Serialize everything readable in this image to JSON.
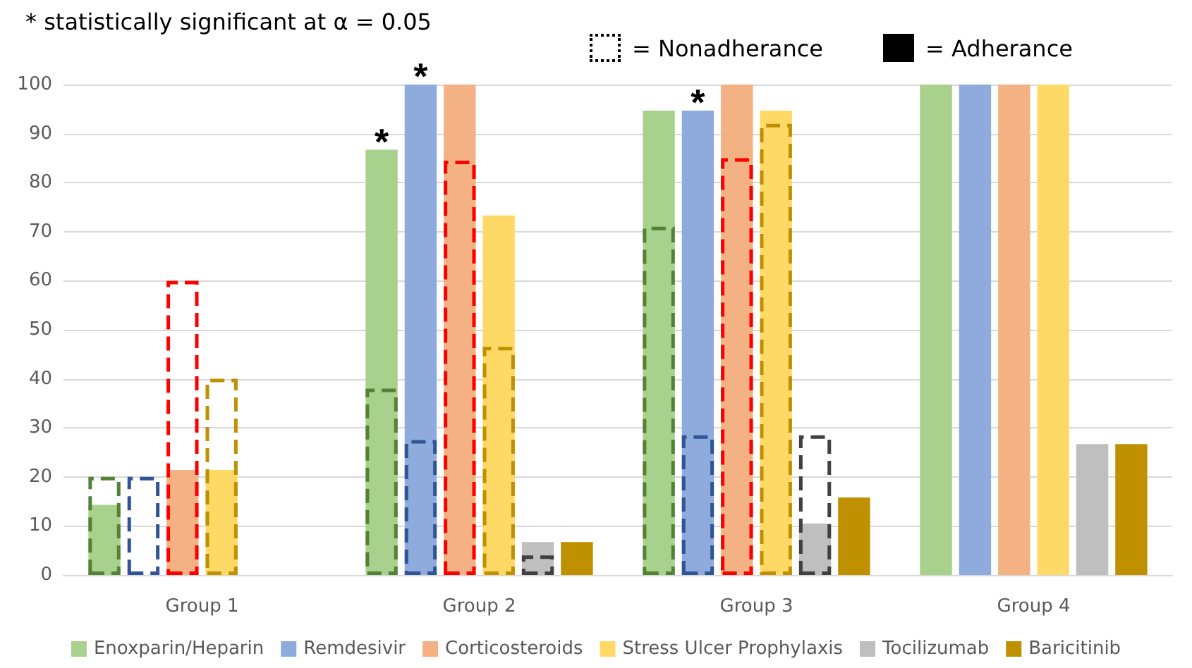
{
  "chart_data": {
    "type": "bar",
    "categories": [
      "Group 1",
      "Group 2",
      "Group 3",
      "Group 4"
    ],
    "series": [
      {
        "name": "Enoxparin/Heparin",
        "color": "#a9d18e",
        "values": [
          14.3,
          86.7,
          94.7,
          100
        ],
        "value_labels": [
          null,
          "*",
          null,
          null
        ]
      },
      {
        "name": "Remdesivir",
        "color": "#8faadc",
        "values": [
          null,
          100,
          94.7,
          100
        ],
        "value_labels": [
          null,
          "*",
          "*",
          null
        ]
      },
      {
        "name": "Corticosteroids",
        "color": "#f4b183",
        "values": [
          21.4,
          100,
          100,
          100
        ]
      },
      {
        "name": "Stress Ulcer Prophylaxis",
        "color": "#ffd966",
        "values": [
          21.4,
          73.3,
          94.7,
          100
        ]
      },
      {
        "name": "Tocilizumab",
        "color": "#bfbfbf",
        "values": [
          null,
          6.7,
          10.5,
          26.7
        ]
      },
      {
        "name": "Baricitinib",
        "color": "#bf9000",
        "values": [
          null,
          6.7,
          15.8,
          26.7
        ]
      },
      {
        "color": "#548235",
        "line_style": "dashed",
        "values": [
          20,
          38,
          71,
          null
        ]
      },
      {
        "color": "#2f5597",
        "line_style": "dashed",
        "values": [
          20,
          27.5,
          28.5,
          null
        ]
      },
      {
        "color": "#ff0000",
        "line_style": "dashed",
        "values": [
          60,
          84.5,
          85,
          null
        ]
      },
      {
        "color": "#bf9000",
        "line_style": "dashed",
        "values": [
          40,
          46.5,
          92,
          null
        ]
      },
      {
        "color": "#404040",
        "line_style": "dashed",
        "values": [
          null,
          4,
          28.5,
          null
        ]
      }
    ],
    "ylim": [
      0,
      100
    ],
    "yticks": [
      0,
      10,
      20,
      30,
      40,
      50,
      60,
      70,
      80,
      90,
      100
    ],
    "grid": "y",
    "legend": "bottom",
    "annotations": [
      "* statistically significant at α = 0.05",
      "= Nonadherance",
      "= Adherance"
    ]
  }
}
